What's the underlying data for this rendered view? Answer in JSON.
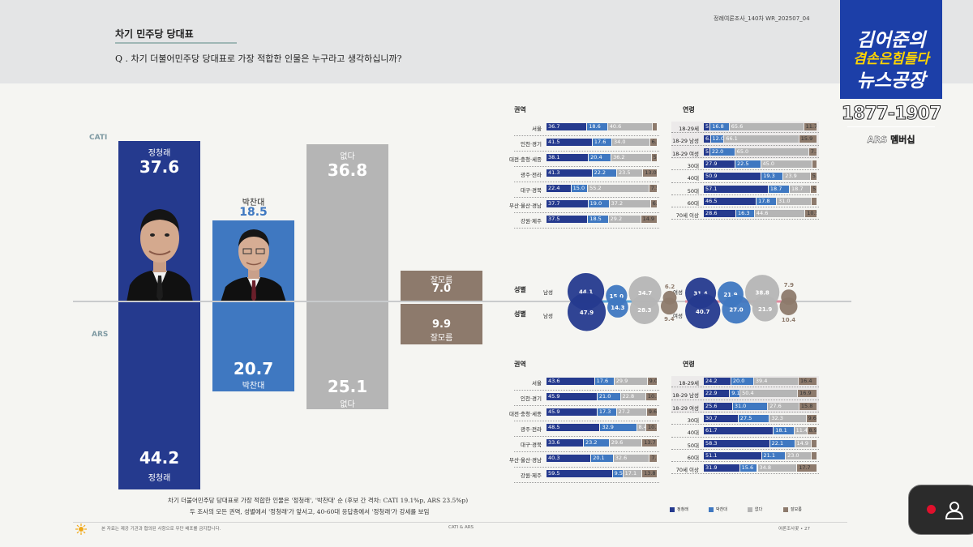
{
  "header": {
    "title": "차기 민주당 당대표",
    "question": "Q . 차기 더불어민주당 당대표로 가장 적합한 인물은 누구라고 생각하십니까?",
    "report_id": "정례여론조사_140차   WR_202507_04"
  },
  "methods": {
    "top": "CATI",
    "bottom": "ARS"
  },
  "chart_data": {
    "type": "bar",
    "title": "",
    "categories": [
      "정청래",
      "박찬대",
      "없다",
      "잘모름"
    ],
    "series": [
      {
        "name": "CATI",
        "values": [
          37.6,
          18.5,
          36.8,
          7.0
        ]
      },
      {
        "name": "ARS",
        "values": [
          44.2,
          20.7,
          25.1,
          9.9
        ]
      }
    ],
    "colors": {
      "정청래": "#253a8e",
      "박찬대": "#3f78c1",
      "없다": "#b5b5b5",
      "잘모름": "#8d7a6c"
    },
    "labels": {
      "cati": {
        "p1_name": "정청래",
        "p1_val": "37.6",
        "p2_name": "박찬대",
        "p2_val": "18.5",
        "none_name": "없다",
        "none_val": "36.8",
        "dk_name": "잘모름",
        "dk_val": "7.0"
      },
      "ars": {
        "p1_name": "정청래",
        "p1_val": "44.2",
        "p2_name": "박찬대",
        "p2_val": "20.7",
        "none_name": "없다",
        "none_val": "25.1",
        "dk_name": "잘모름",
        "dk_val": "9.9"
      }
    }
  },
  "breakdown": {
    "region_title": "권역",
    "age_title": "연령",
    "gender_title": "성별",
    "cati_region": [
      {
        "label": "서울",
        "v": [
          36.7,
          18.6,
          40.6,
          4.1
        ],
        "t": [
          "36.7",
          "18.6",
          "40.6",
          ""
        ]
      },
      {
        "label": "인천·경기",
        "v": [
          41.5,
          17.6,
          34.0,
          6.8
        ],
        "t": [
          "41.5",
          "17.6",
          "34.0",
          "6.8"
        ]
      },
      {
        "label": "대전·충청·세종",
        "v": [
          38.1,
          20.4,
          36.2,
          5.4
        ],
        "t": [
          "38.1",
          "20.4",
          "36.2",
          "5.4"
        ]
      },
      {
        "label": "광주·전라",
        "v": [
          41.3,
          22.2,
          23.5,
          13.0
        ],
        "t": [
          "41.3",
          "22.2",
          "23.5",
          "13.0"
        ]
      },
      {
        "label": "대구·경북",
        "v": [
          22.4,
          15.0,
          55.2,
          7.5
        ],
        "t": [
          "22.4",
          "15.0",
          "55.2",
          "7.5"
        ]
      },
      {
        "label": "부산·울산·경남",
        "v": [
          37.7,
          19.0,
          37.2,
          6.1
        ],
        "t": [
          "37.7",
          "19.0",
          "37.2",
          "6.1"
        ]
      },
      {
        "label": "강원·제주",
        "v": [
          37.5,
          18.5,
          29.2,
          14.9
        ],
        "t": [
          "37.5",
          "18.5",
          "29.2",
          "14.9"
        ]
      }
    ],
    "cati_age": [
      {
        "label": "18-29세",
        "v": [
          5.9,
          16.8,
          65.6,
          11.7
        ],
        "t": [
          "5.9",
          "16.8",
          "65.6",
          "11.7"
        ]
      },
      {
        "label": "18-29 남성",
        "v": [
          6.1,
          12.0,
          66.1,
          15.9
        ],
        "t": [
          "6.1",
          "12.0",
          "66.1",
          "15.9"
        ]
      },
      {
        "label": "18-29 여성",
        "v": [
          5.6,
          22.0,
          65.0,
          7.2
        ],
        "t": [
          "5.6",
          "22.0",
          "65.0",
          "7.2"
        ]
      },
      {
        "label": "30대",
        "v": [
          27.9,
          22.5,
          45.0,
          4.6
        ],
        "t": [
          "27.9",
          "22.5",
          "45.0",
          ""
        ]
      },
      {
        "label": "40대",
        "v": [
          50.9,
          19.3,
          23.9,
          5.9
        ],
        "t": [
          "50.9",
          "19.3",
          "23.9",
          "5.9"
        ]
      },
      {
        "label": "50대",
        "v": [
          57.1,
          18.7,
          18.7,
          5.6
        ],
        "t": [
          "57.1",
          "18.7",
          "18.7",
          "5.6"
        ]
      },
      {
        "label": "60대",
        "v": [
          46.5,
          17.8,
          31.0,
          4.7
        ],
        "t": [
          "46.5",
          "17.8",
          "31.0",
          ""
        ]
      },
      {
        "label": "70세 이상",
        "v": [
          28.6,
          16.3,
          44.6,
          10.5
        ],
        "t": [
          "28.6",
          "16.3",
          "44.6",
          "10.5"
        ]
      }
    ],
    "ars_region": [
      {
        "label": "서울",
        "v": [
          43.6,
          17.6,
          29.9,
          9.0
        ],
        "t": [
          "43.6",
          "17.6",
          "29.9",
          "9.0"
        ]
      },
      {
        "label": "인천·경기",
        "v": [
          45.9,
          21.0,
          22.8,
          10.3
        ],
        "t": [
          "45.9",
          "21.0",
          "22.8",
          "10.3"
        ]
      },
      {
        "label": "대전·충청·세종",
        "v": [
          45.9,
          17.3,
          27.2,
          9.6
        ],
        "t": [
          "45.9",
          "17.3",
          "27.2",
          "9.6"
        ]
      },
      {
        "label": "광주·전라",
        "v": [
          48.5,
          32.9,
          8.4,
          10.2
        ],
        "t": [
          "48.5",
          "32.9",
          "8.4",
          "10.2"
        ]
      },
      {
        "label": "대구·경북",
        "v": [
          33.6,
          23.2,
          29.6,
          13.7
        ],
        "t": [
          "33.6",
          "23.2",
          "29.6",
          "13.7"
        ]
      },
      {
        "label": "부산·울산·경남",
        "v": [
          40.3,
          20.1,
          32.6,
          7.0
        ],
        "t": [
          "40.3",
          "20.1",
          "32.6",
          "7.0"
        ]
      },
      {
        "label": "강원·제주",
        "v": [
          59.5,
          9.5,
          17.1,
          13.8
        ],
        "t": [
          "59.5",
          "9.5",
          "17.1",
          "13.8"
        ]
      }
    ],
    "ars_age": [
      {
        "label": "18-29세",
        "v": [
          24.2,
          20.0,
          39.4,
          16.4
        ],
        "t": [
          "24.2",
          "20.0",
          "39.4",
          "16.4"
        ]
      },
      {
        "label": "18-29 남성",
        "v": [
          22.9,
          9.1,
          50.4,
          16.9
        ],
        "t": [
          "22.9",
          "9.1",
          "50.4",
          "16.9"
        ]
      },
      {
        "label": "18-29 여성",
        "v": [
          25.6,
          31.0,
          27.6,
          15.8
        ],
        "t": [
          "25.6",
          "31.0",
          "27.6",
          "15.8"
        ]
      },
      {
        "label": "30대",
        "v": [
          30.7,
          27.5,
          32.3,
          9.6
        ],
        "t": [
          "30.7",
          "27.5",
          "32.3",
          "9.6"
        ]
      },
      {
        "label": "40대",
        "v": [
          61.7,
          18.1,
          11.4,
          8.9
        ],
        "t": [
          "61.7",
          "18.1",
          "11.4",
          "8.9"
        ]
      },
      {
        "label": "50대",
        "v": [
          58.3,
          22.1,
          14.9,
          4.7
        ],
        "t": [
          "58.3",
          "22.1",
          "14.9",
          ""
        ]
      },
      {
        "label": "60대",
        "v": [
          51.1,
          21.1,
          23.0,
          4.8
        ],
        "t": [
          "51.1",
          "21.1",
          "23.0",
          ""
        ]
      },
      {
        "label": "70세 이상",
        "v": [
          31.9,
          15.6,
          34.8,
          17.7
        ],
        "t": [
          "31.9",
          "15.6",
          "34.8",
          "17.7"
        ]
      }
    ],
    "gender": {
      "male_label": "남성",
      "female_label": "여성",
      "cati_male": [
        44.1,
        15.0,
        34.7,
        6.2
      ],
      "ars_male": [
        47.9,
        14.3,
        28.3,
        9.4
      ],
      "cati_female": [
        31.4,
        21.9,
        38.8,
        7.9
      ],
      "ars_female": [
        40.7,
        27.0,
        21.9,
        10.4
      ]
    }
  },
  "legend": [
    "정청래",
    "박찬대",
    "없다",
    "잘모름"
  ],
  "notes": {
    "line1": "차기 더불어민주당 당대표로 가장 적합한 인물은 '정청래', '박찬대' 순 (후보 간 격차: CATI 19.1%p, ARS 23.5%p)",
    "line2": "두 조사의 모든 권역, 성별에서 '정청래'가 앞서고, 40-60대 응답층에서 '정청래'가 강세를 보임"
  },
  "footer": {
    "center": "CATI & ARS",
    "right": "여론조사꽃 • 27",
    "left": "본 자료는 제공 기관과 협의된 사항으로 무단 배포를 금지합니다."
  },
  "overlay": {
    "logo_line1": "김어준의",
    "logo_line2": "겸손은힘들다",
    "logo_line3": "뉴스공장",
    "phone": "1877-1907",
    "membership": "ARS 멤버십"
  },
  "colors": {
    "p1": "#253a8e",
    "p2": "#3f78c1",
    "none": "#b5b5b5",
    "dk": "#8d7a6c"
  }
}
